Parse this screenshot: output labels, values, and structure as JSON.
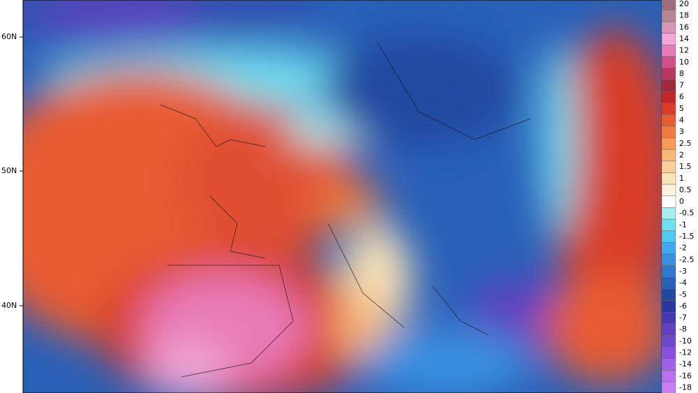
{
  "map": {
    "latitude_labels": [
      "60N",
      "50N",
      "40N"
    ],
    "legend": [
      {
        "label": "20",
        "color": "#9e6e7e"
      },
      {
        "label": "18",
        "color": "#b98595"
      },
      {
        "label": "16",
        "color": "#d896b6"
      },
      {
        "label": "14",
        "color": "#f0a8d8"
      },
      {
        "label": "12",
        "color": "#e87cb8"
      },
      {
        "label": "10",
        "color": "#d05088"
      },
      {
        "label": "8",
        "color": "#b83860"
      },
      {
        "label": "7",
        "color": "#a02838"
      },
      {
        "label": "6",
        "color": "#c02828"
      },
      {
        "label": "5",
        "color": "#d83c28"
      },
      {
        "label": "4",
        "color": "#e85c30"
      },
      {
        "label": "3",
        "color": "#f07c40"
      },
      {
        "label": "2.5",
        "color": "#f59c58"
      },
      {
        "label": "2",
        "color": "#f8b878"
      },
      {
        "label": "1.5",
        "color": "#f8d098"
      },
      {
        "label": "1",
        "color": "#fae4b8"
      },
      {
        "label": "0.5",
        "color": "#fdf2dc"
      },
      {
        "label": "0",
        "color": "#ffffff"
      },
      {
        "label": "-0.5",
        "color": "#a8f0f0"
      },
      {
        "label": "-1",
        "color": "#70e0f0"
      },
      {
        "label": "-1.5",
        "color": "#50c8f0"
      },
      {
        "label": "-2",
        "color": "#40a8ee"
      },
      {
        "label": "-2.5",
        "color": "#3890e0"
      },
      {
        "label": "-3",
        "color": "#3078d0"
      },
      {
        "label": "-4",
        "color": "#2860b8"
      },
      {
        "label": "-5",
        "color": "#2048a0"
      },
      {
        "label": "-6",
        "color": "#2838a0"
      },
      {
        "label": "-7",
        "color": "#4838b0"
      },
      {
        "label": "-8",
        "color": "#6040c0"
      },
      {
        "label": "-10",
        "color": "#7048d0"
      },
      {
        "label": "-12",
        "color": "#8850e0"
      },
      {
        "label": "-14",
        "color": "#a060e8"
      },
      {
        "label": "-16",
        "color": "#b870f0"
      },
      {
        "label": "-18",
        "color": "#c880f0"
      }
    ]
  }
}
